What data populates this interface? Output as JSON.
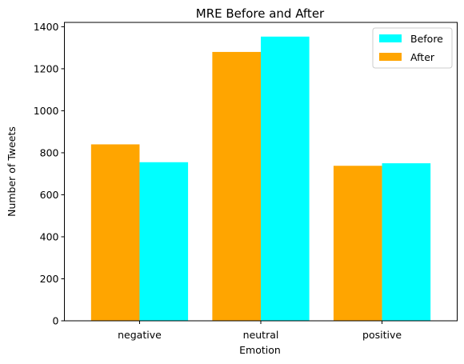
{
  "chart_data": {
    "type": "bar",
    "title": "MRE Before and After",
    "xlabel": "Emotion",
    "ylabel": "Number of Tweets",
    "categories": [
      "negative",
      "neutral",
      "positive"
    ],
    "series": [
      {
        "name": "After",
        "color": "#ffa500",
        "values": [
          840,
          1280,
          738
        ]
      },
      {
        "name": "Before",
        "color": "#00ffff",
        "values": [
          755,
          1353,
          750
        ]
      }
    ],
    "yticks": [
      0,
      200,
      400,
      600,
      800,
      1000,
      1200,
      1400
    ],
    "ylim": [
      0,
      1420.65
    ],
    "grid": false,
    "legend": {
      "placement": "top-right",
      "entries": [
        {
          "name": "Before",
          "color": "#00ffff"
        },
        {
          "name": "After",
          "color": "#ffa500"
        }
      ]
    }
  }
}
